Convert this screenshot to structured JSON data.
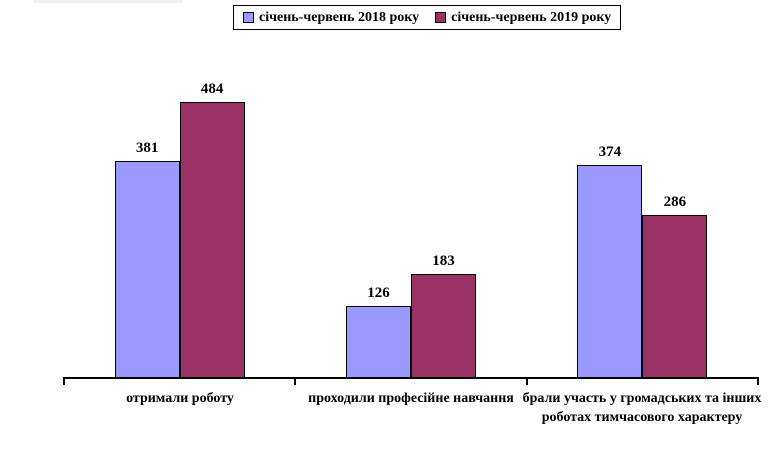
{
  "colors": {
    "series_2018": "#9999FF",
    "series_2019": "#993366",
    "bar_border": "#000000",
    "axis": "#000000",
    "text": "#000000",
    "background": "#FFFFFF"
  },
  "legend": {
    "items": [
      {
        "label": "січень-червень 2018 року",
        "color": "#9999FF"
      },
      {
        "label": "січень-червень 2019 року",
        "color": "#993366"
      }
    ]
  },
  "chart_data": {
    "type": "bar",
    "title": "",
    "xlabel": "",
    "ylabel": "",
    "categories": [
      "отримали роботу",
      "проходили професійне навчання",
      "брали участь у громадських та інших роботах тимчасового характеру"
    ],
    "series": [
      {
        "name": "січень-червень 2018 року",
        "color": "#9999FF",
        "values": [
          381,
          126,
          374
        ]
      },
      {
        "name": "січень-червень 2019 року",
        "color": "#993366",
        "values": [
          484,
          183,
          286
        ]
      }
    ],
    "ylim": [
      0,
      550
    ],
    "grid": false,
    "y_axis_visible": false,
    "legend_position": "top-center",
    "value_labels": true
  }
}
